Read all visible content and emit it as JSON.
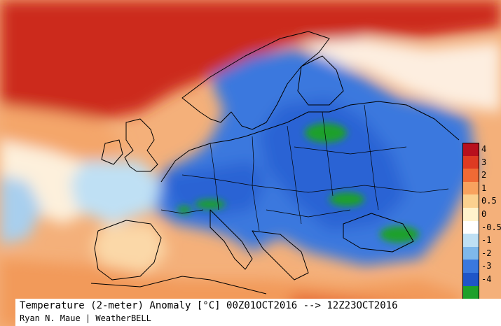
{
  "map": {
    "title": "Temperature (2-meter) Anomaly",
    "units": "[°C]",
    "period_start": "00Z01OCT2016",
    "period_arrow": "-->",
    "period_end": "12Z23OCT2016",
    "credit": "Ryan N. Maue | WeatherBELL",
    "region": "Europe",
    "colorbar": [
      {
        "label": "4",
        "color": "#b8101d"
      },
      {
        "label": "3",
        "color": "#de3a22"
      },
      {
        "label": "2",
        "color": "#f06a35"
      },
      {
        "label": "1",
        "color": "#f8a25e"
      },
      {
        "label": "0.5",
        "color": "#fbd18f"
      },
      {
        "label": "0",
        "color": "#fff3cc"
      },
      {
        "label": "-0.5",
        "color": "#ffffff"
      },
      {
        "label": "-1",
        "color": "#bfe0f4"
      },
      {
        "label": "-2",
        "color": "#7fb8ea"
      },
      {
        "label": "-3",
        "color": "#3a78de"
      },
      {
        "label": "-4",
        "color": "#1f55c8"
      },
      {
        "label": "",
        "color": "#1fa02a"
      }
    ]
  }
}
